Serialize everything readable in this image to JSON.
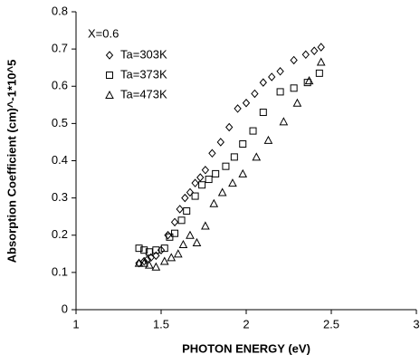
{
  "chart_data": {
    "type": "scatter",
    "x_label": "PHOTON ENERGY (eV)",
    "y_label": "Absorption Coefficient (cm)^-1*10^5",
    "legend_title": "X=0.6",
    "legend": "upper left",
    "xlim": [
      1,
      3
    ],
    "ylim": [
      0,
      0.8
    ],
    "xticks": [
      1,
      1.5,
      2,
      2.5,
      3
    ],
    "yticks": [
      0,
      0.1,
      0.2,
      0.3,
      0.4,
      0.5,
      0.6,
      0.7,
      0.8
    ],
    "series": [
      {
        "name": "Ta=303K",
        "color": "#000000",
        "marker": "diamond",
        "x": [
          1.37,
          1.4,
          1.42,
          1.44,
          1.47,
          1.5,
          1.54,
          1.58,
          1.61,
          1.64,
          1.67,
          1.7,
          1.73,
          1.76,
          1.8,
          1.85,
          1.9,
          1.95,
          2.0,
          2.05,
          2.1,
          2.15,
          2.2,
          2.28,
          2.35,
          2.4,
          2.44
        ],
        "values": [
          0.125,
          0.13,
          0.135,
          0.14,
          0.145,
          0.16,
          0.2,
          0.235,
          0.27,
          0.3,
          0.315,
          0.34,
          0.355,
          0.375,
          0.42,
          0.45,
          0.49,
          0.54,
          0.555,
          0.58,
          0.61,
          0.625,
          0.64,
          0.67,
          0.685,
          0.695,
          0.705
        ]
      },
      {
        "name": "Ta=373K",
        "color": "#000000",
        "marker": "square",
        "x": [
          1.37,
          1.4,
          1.43,
          1.47,
          1.52,
          1.55,
          1.58,
          1.62,
          1.65,
          1.7,
          1.74,
          1.78,
          1.82,
          1.88,
          1.93,
          1.98,
          2.04,
          2.1,
          2.2,
          2.28,
          2.36,
          2.43
        ],
        "values": [
          0.165,
          0.16,
          0.155,
          0.16,
          0.165,
          0.195,
          0.205,
          0.24,
          0.265,
          0.305,
          0.335,
          0.35,
          0.365,
          0.385,
          0.41,
          0.445,
          0.48,
          0.53,
          0.585,
          0.595,
          0.61,
          0.635
        ]
      },
      {
        "name": "Ta=473K",
        "color": "#000000",
        "marker": "triangle",
        "x": [
          1.37,
          1.4,
          1.43,
          1.47,
          1.52,
          1.56,
          1.6,
          1.63,
          1.67,
          1.71,
          1.76,
          1.81,
          1.86,
          1.92,
          1.98,
          2.06,
          2.13,
          2.22,
          2.3,
          2.37,
          2.44
        ],
        "values": [
          0.125,
          0.125,
          0.12,
          0.115,
          0.13,
          0.14,
          0.15,
          0.175,
          0.2,
          0.18,
          0.225,
          0.285,
          0.315,
          0.34,
          0.365,
          0.41,
          0.455,
          0.505,
          0.555,
          0.615,
          0.665
        ]
      }
    ]
  }
}
